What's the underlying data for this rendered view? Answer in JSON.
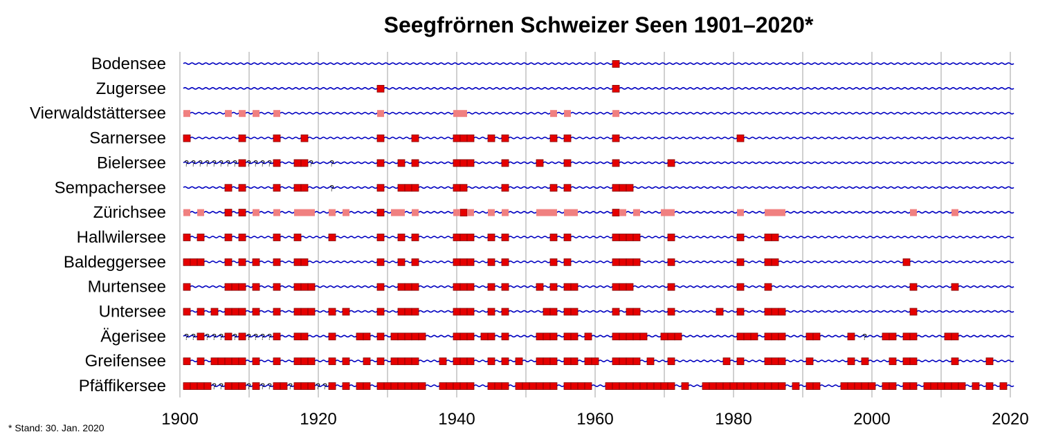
{
  "chart_data": {
    "type": "scatter",
    "title": "Seegfrörnen Schweizer Seen 1901–2020*",
    "footnote": "* Stand: 30. Jan. 2020",
    "xlim": [
      1900,
      2020
    ],
    "x_ticks": [
      1900,
      1920,
      1940,
      1960,
      1980,
      2000,
      2020
    ],
    "grid": "vertical every 10 years",
    "colors": {
      "frozen": "#e50000",
      "partial": "#f08080",
      "unknown": "#000000",
      "line": "#0000c0",
      "grid": "#a0a0a0"
    },
    "lakes": [
      {
        "name": "Bodensee",
        "frozen": [
          1963
        ],
        "partial": [],
        "unknown": []
      },
      {
        "name": "Zugersee",
        "frozen": [
          1929,
          1963
        ],
        "partial": [],
        "unknown": []
      },
      {
        "name": "Vierwaldstättersee",
        "frozen": [],
        "partial": [
          1901,
          1907,
          1909,
          1911,
          1914,
          1929,
          1940,
          1941,
          1954,
          1956,
          1963
        ],
        "unknown": []
      },
      {
        "name": "Sarnersee",
        "frozen": [
          1901,
          1909,
          1914,
          1918,
          1929,
          1934,
          1940,
          1941,
          1942,
          1945,
          1947,
          1954,
          1956,
          1963,
          1981
        ],
        "partial": [],
        "unknown": []
      },
      {
        "name": "Bielersee",
        "frozen": [
          1909,
          1914,
          1917,
          1918,
          1929,
          1932,
          1934,
          1940,
          1941,
          1942,
          1947,
          1952,
          1956,
          1963,
          1971
        ],
        "partial": [],
        "unknown": [
          1901,
          1902,
          1903,
          1904,
          1905,
          1906,
          1907,
          1908,
          1910,
          1911,
          1912,
          1913,
          1919,
          1922
        ]
      },
      {
        "name": "Sempachersee",
        "frozen": [
          1907,
          1909,
          1914,
          1917,
          1918,
          1929,
          1932,
          1933,
          1934,
          1940,
          1941,
          1947,
          1954,
          1956,
          1963,
          1964,
          1965
        ],
        "partial": [],
        "unknown": [
          1922
        ]
      },
      {
        "name": "Zürichsee",
        "frozen": [
          1907,
          1909,
          1929,
          1941,
          1963
        ],
        "partial": [
          1901,
          1903,
          1911,
          1914,
          1917,
          1918,
          1919,
          1922,
          1924,
          1931,
          1932,
          1934,
          1940,
          1942,
          1945,
          1947,
          1952,
          1953,
          1954,
          1956,
          1957,
          1964,
          1966,
          1970,
          1971,
          1981,
          1985,
          1986,
          1987,
          2006,
          2012
        ],
        "unknown": []
      },
      {
        "name": "Hallwilersee",
        "frozen": [
          1901,
          1903,
          1907,
          1909,
          1914,
          1917,
          1922,
          1929,
          1932,
          1934,
          1940,
          1941,
          1942,
          1945,
          1947,
          1954,
          1956,
          1963,
          1964,
          1965,
          1966,
          1971,
          1981,
          1985,
          1986
        ],
        "partial": [],
        "unknown": []
      },
      {
        "name": "Baldeggersee",
        "frozen": [
          1901,
          1902,
          1903,
          1907,
          1909,
          1911,
          1914,
          1917,
          1918,
          1929,
          1932,
          1934,
          1940,
          1941,
          1942,
          1945,
          1947,
          1954,
          1956,
          1963,
          1964,
          1965,
          1966,
          1971,
          1981,
          1985,
          1986,
          2005
        ],
        "partial": [],
        "unknown": []
      },
      {
        "name": "Murtensee",
        "frozen": [
          1901,
          1907,
          1908,
          1909,
          1911,
          1914,
          1917,
          1918,
          1919,
          1929,
          1932,
          1933,
          1934,
          1940,
          1941,
          1942,
          1945,
          1947,
          1952,
          1954,
          1956,
          1957,
          1963,
          1964,
          1965,
          1971,
          1981,
          1985,
          2006,
          2012
        ],
        "partial": [],
        "unknown": []
      },
      {
        "name": "Untersee",
        "frozen": [
          1901,
          1903,
          1905,
          1907,
          1908,
          1909,
          1911,
          1914,
          1917,
          1918,
          1919,
          1922,
          1924,
          1929,
          1932,
          1933,
          1934,
          1940,
          1941,
          1942,
          1945,
          1947,
          1953,
          1954,
          1956,
          1957,
          1963,
          1965,
          1966,
          1971,
          1978,
          1981,
          1985,
          1986,
          1987,
          2006
        ],
        "partial": [],
        "unknown": []
      },
      {
        "name": "Ägerisee",
        "frozen": [
          1903,
          1907,
          1909,
          1914,
          1917,
          1918,
          1922,
          1926,
          1927,
          1929,
          1931,
          1932,
          1933,
          1934,
          1935,
          1940,
          1941,
          1942,
          1944,
          1945,
          1947,
          1952,
          1953,
          1954,
          1956,
          1957,
          1959,
          1963,
          1964,
          1965,
          1966,
          1967,
          1970,
          1971,
          1972,
          1981,
          1982,
          1983,
          1985,
          1986,
          1987,
          1991,
          1992,
          1997,
          2002,
          2003,
          2005,
          2006,
          2011,
          2012
        ],
        "partial": [],
        "unknown": [
          1901,
          1902,
          1904,
          1905,
          1906,
          1908,
          1910,
          1911,
          1912,
          1913,
          1999
        ]
      },
      {
        "name": "Greifensee",
        "frozen": [
          1901,
          1903,
          1905,
          1906,
          1907,
          1908,
          1909,
          1911,
          1914,
          1917,
          1918,
          1919,
          1922,
          1924,
          1927,
          1929,
          1931,
          1932,
          1933,
          1934,
          1938,
          1940,
          1941,
          1942,
          1945,
          1947,
          1949,
          1952,
          1953,
          1954,
          1956,
          1957,
          1959,
          1960,
          1963,
          1964,
          1965,
          1966,
          1968,
          1971,
          1979,
          1981,
          1985,
          1986,
          1987,
          1991,
          1997,
          1999,
          2003,
          2005,
          2006,
          2012,
          2017
        ],
        "partial": [],
        "unknown": []
      },
      {
        "name": "Pfäffikersee",
        "frozen": [
          1901,
          1902,
          1903,
          1904,
          1907,
          1908,
          1909,
          1911,
          1914,
          1915,
          1917,
          1918,
          1919,
          1922,
          1924,
          1926,
          1927,
          1929,
          1930,
          1931,
          1932,
          1933,
          1934,
          1935,
          1938,
          1939,
          1940,
          1941,
          1942,
          1945,
          1946,
          1947,
          1949,
          1950,
          1951,
          1952,
          1953,
          1954,
          1956,
          1957,
          1958,
          1959,
          1962,
          1963,
          1964,
          1965,
          1966,
          1967,
          1968,
          1969,
          1970,
          1971,
          1973,
          1976,
          1977,
          1978,
          1979,
          1980,
          1981,
          1982,
          1983,
          1984,
          1985,
          1986,
          1987,
          1989,
          1991,
          1992,
          1996,
          1997,
          1998,
          1999,
          2000,
          2002,
          2003,
          2005,
          2006,
          2008,
          2009,
          2010,
          2011,
          2012,
          2013,
          2015,
          2017,
          2019
        ],
        "partial": [],
        "unknown": [
          1905,
          1906,
          1910,
          1912,
          1913,
          1916,
          1920,
          1921
        ]
      }
    ]
  }
}
